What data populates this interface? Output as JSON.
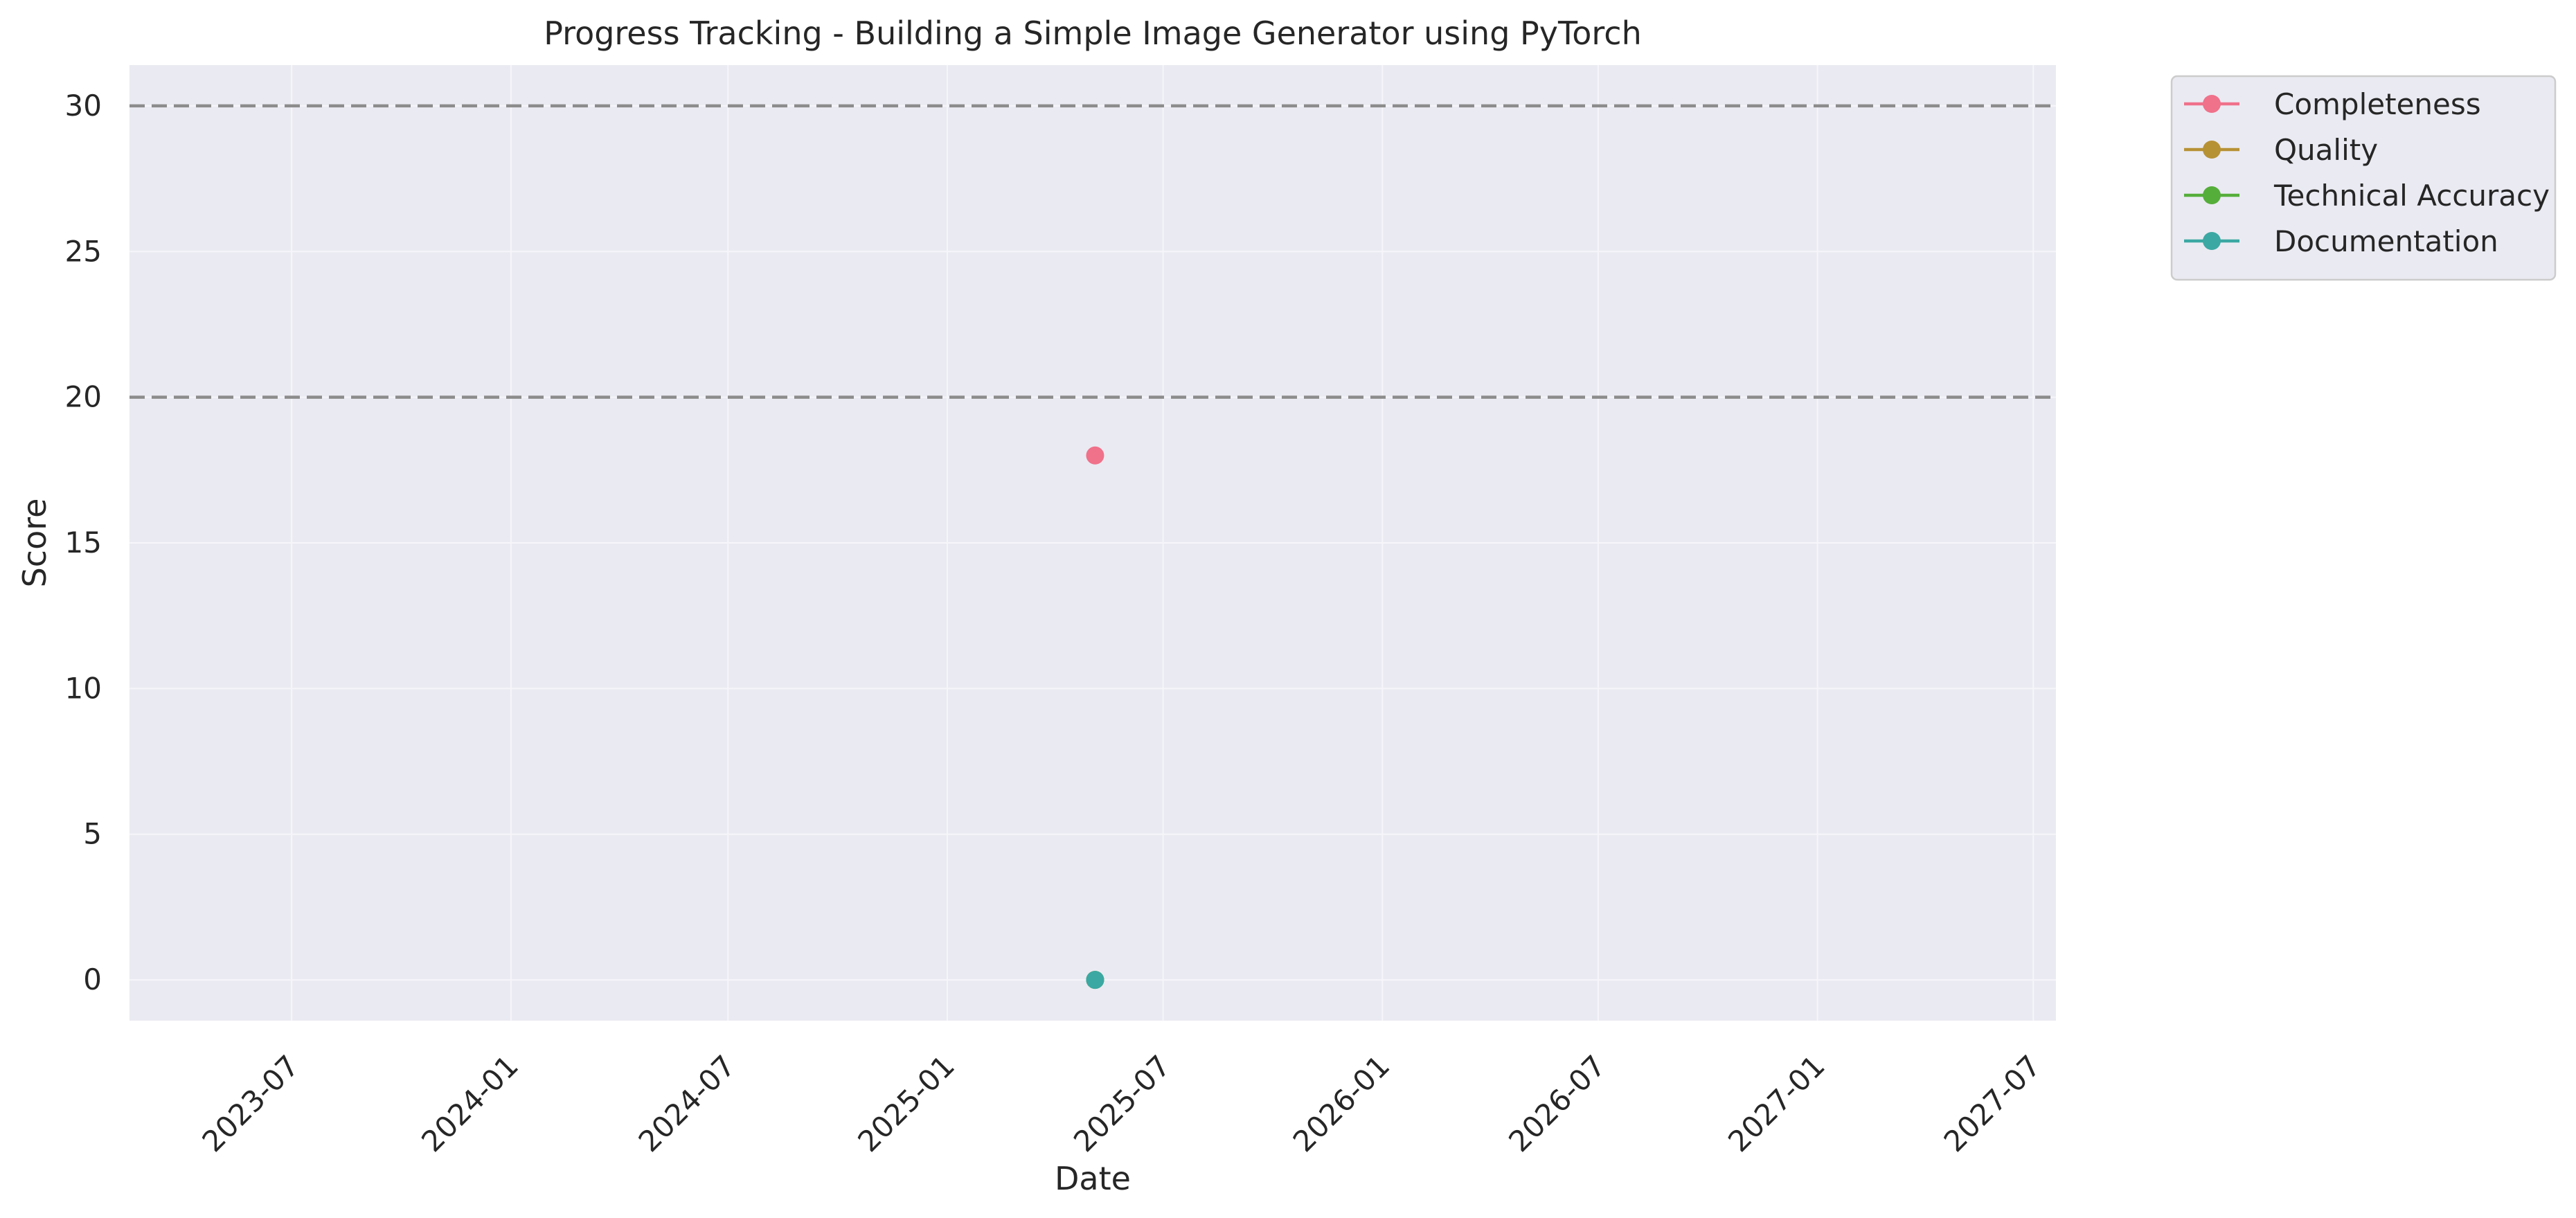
{
  "chart_data": {
    "type": "scatter",
    "title": "Progress Tracking - Building a Simple Image Generator using PyTorch",
    "xlabel": "Date",
    "ylabel": "Score",
    "x_axis_type": "date",
    "xlim": [
      "2023-02-15",
      "2027-07-20"
    ],
    "ylim": [
      -1.4,
      31.4
    ],
    "yticks": [
      0,
      5,
      10,
      15,
      20,
      25,
      30
    ],
    "xticks": [
      "2023-07",
      "2024-01",
      "2024-07",
      "2025-01",
      "2025-07",
      "2026-01",
      "2026-07",
      "2027-01",
      "2027-07"
    ],
    "grid": true,
    "legend_position": "outside-top-right",
    "reference_lines": [
      {
        "y": 30,
        "style": "dashed",
        "color": "#8c8c8c"
      },
      {
        "y": 20,
        "style": "dashed",
        "color": "#8c8c8c"
      }
    ],
    "series": [
      {
        "name": "Completeness",
        "color": "#f0718a",
        "points": [
          {
            "x": "2025-05-05",
            "y": 18
          }
        ]
      },
      {
        "name": "Quality",
        "color": "#b79235",
        "points": [
          {
            "x": "2025-05-05",
            "y": 0
          }
        ]
      },
      {
        "name": "Technical Accuracy",
        "color": "#55ae3a",
        "points": [
          {
            "x": "2025-05-05",
            "y": 0
          }
        ]
      },
      {
        "name": "Documentation",
        "color": "#3ba8a3",
        "points": [
          {
            "x": "2025-05-05",
            "y": 0
          }
        ]
      }
    ]
  }
}
